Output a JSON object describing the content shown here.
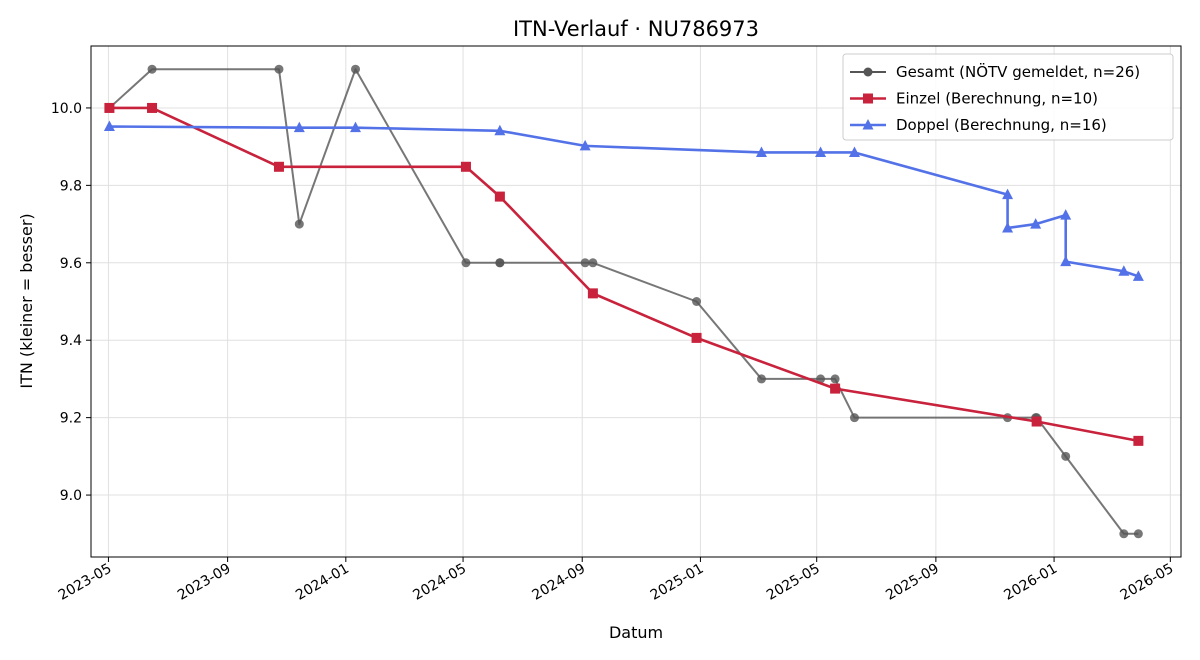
{
  "chart_data": {
    "type": "line",
    "title": "ITN-Verlauf · NU786973",
    "xlabel": "Datum",
    "ylabel": "ITN  (kleiner = besser)",
    "x_ticks": [
      "2023-05",
      "2023-09",
      "2024-01",
      "2024-05",
      "2024-09",
      "2025-01",
      "2025-05",
      "2025-09",
      "2026-01",
      "2026-05"
    ],
    "y_ticks": [
      "9.0",
      "9.2",
      "9.4",
      "9.6",
      "9.8",
      "10.0"
    ],
    "xlim": [
      "2023-04-13",
      "2026-05-12"
    ],
    "ylim": [
      8.84,
      10.16
    ],
    "grid": true,
    "legend_position": "top-right",
    "series": [
      {
        "name": "Gesamt (NÖTV gemeldet, n=26)",
        "color": "#555555",
        "marker": "circle",
        "x": [
          "2023-05-02",
          "2023-06-15",
          "2023-10-24",
          "2023-11-14",
          "2024-01-11",
          "2024-05-04",
          "2024-06-08",
          "2024-06-08",
          "2024-09-04",
          "2024-09-12",
          "2024-12-28",
          "2025-03-05",
          "2025-05-05",
          "2025-05-20",
          "2025-06-09",
          "2025-11-14",
          "2025-12-13",
          "2025-12-14",
          "2026-01-13",
          "2026-03-14",
          "2026-03-29"
        ],
        "y": [
          10.0,
          10.1,
          10.1,
          9.7,
          10.1,
          9.6,
          9.6,
          9.6,
          9.6,
          9.6,
          9.5,
          9.3,
          9.3,
          9.3,
          9.2,
          9.2,
          9.2,
          9.2,
          9.1,
          8.9,
          8.9
        ]
      },
      {
        "name": "Einzel (Berechnung, n=10)",
        "color": "#c8223c",
        "marker": "square",
        "x": [
          "2023-05-02",
          "2023-06-15",
          "2023-10-24",
          "2024-05-04",
          "2024-06-08",
          "2024-09-12",
          "2024-12-28",
          "2025-05-20",
          "2025-12-14",
          "2026-03-29"
        ],
        "y": [
          10.0,
          10.0,
          9.848,
          9.848,
          9.771,
          9.521,
          9.406,
          9.275,
          9.19,
          9.14
        ]
      },
      {
        "name": "Doppel (Berechnung, n=16)",
        "color": "#5472e8",
        "marker": "triangle",
        "x": [
          "2023-05-02",
          "2023-11-14",
          "2024-01-11",
          "2024-06-08",
          "2024-09-04",
          "2025-03-05",
          "2025-05-05",
          "2025-06-09",
          "2025-11-14",
          "2025-11-14",
          "2025-12-13",
          "2026-01-13",
          "2026-01-13",
          "2026-03-14",
          "2026-03-29"
        ],
        "y": [
          9.952,
          9.949,
          9.949,
          9.941,
          9.902,
          9.885,
          9.885,
          9.885,
          9.776,
          9.69,
          9.7,
          9.723,
          9.603,
          9.578,
          9.565
        ]
      }
    ]
  }
}
